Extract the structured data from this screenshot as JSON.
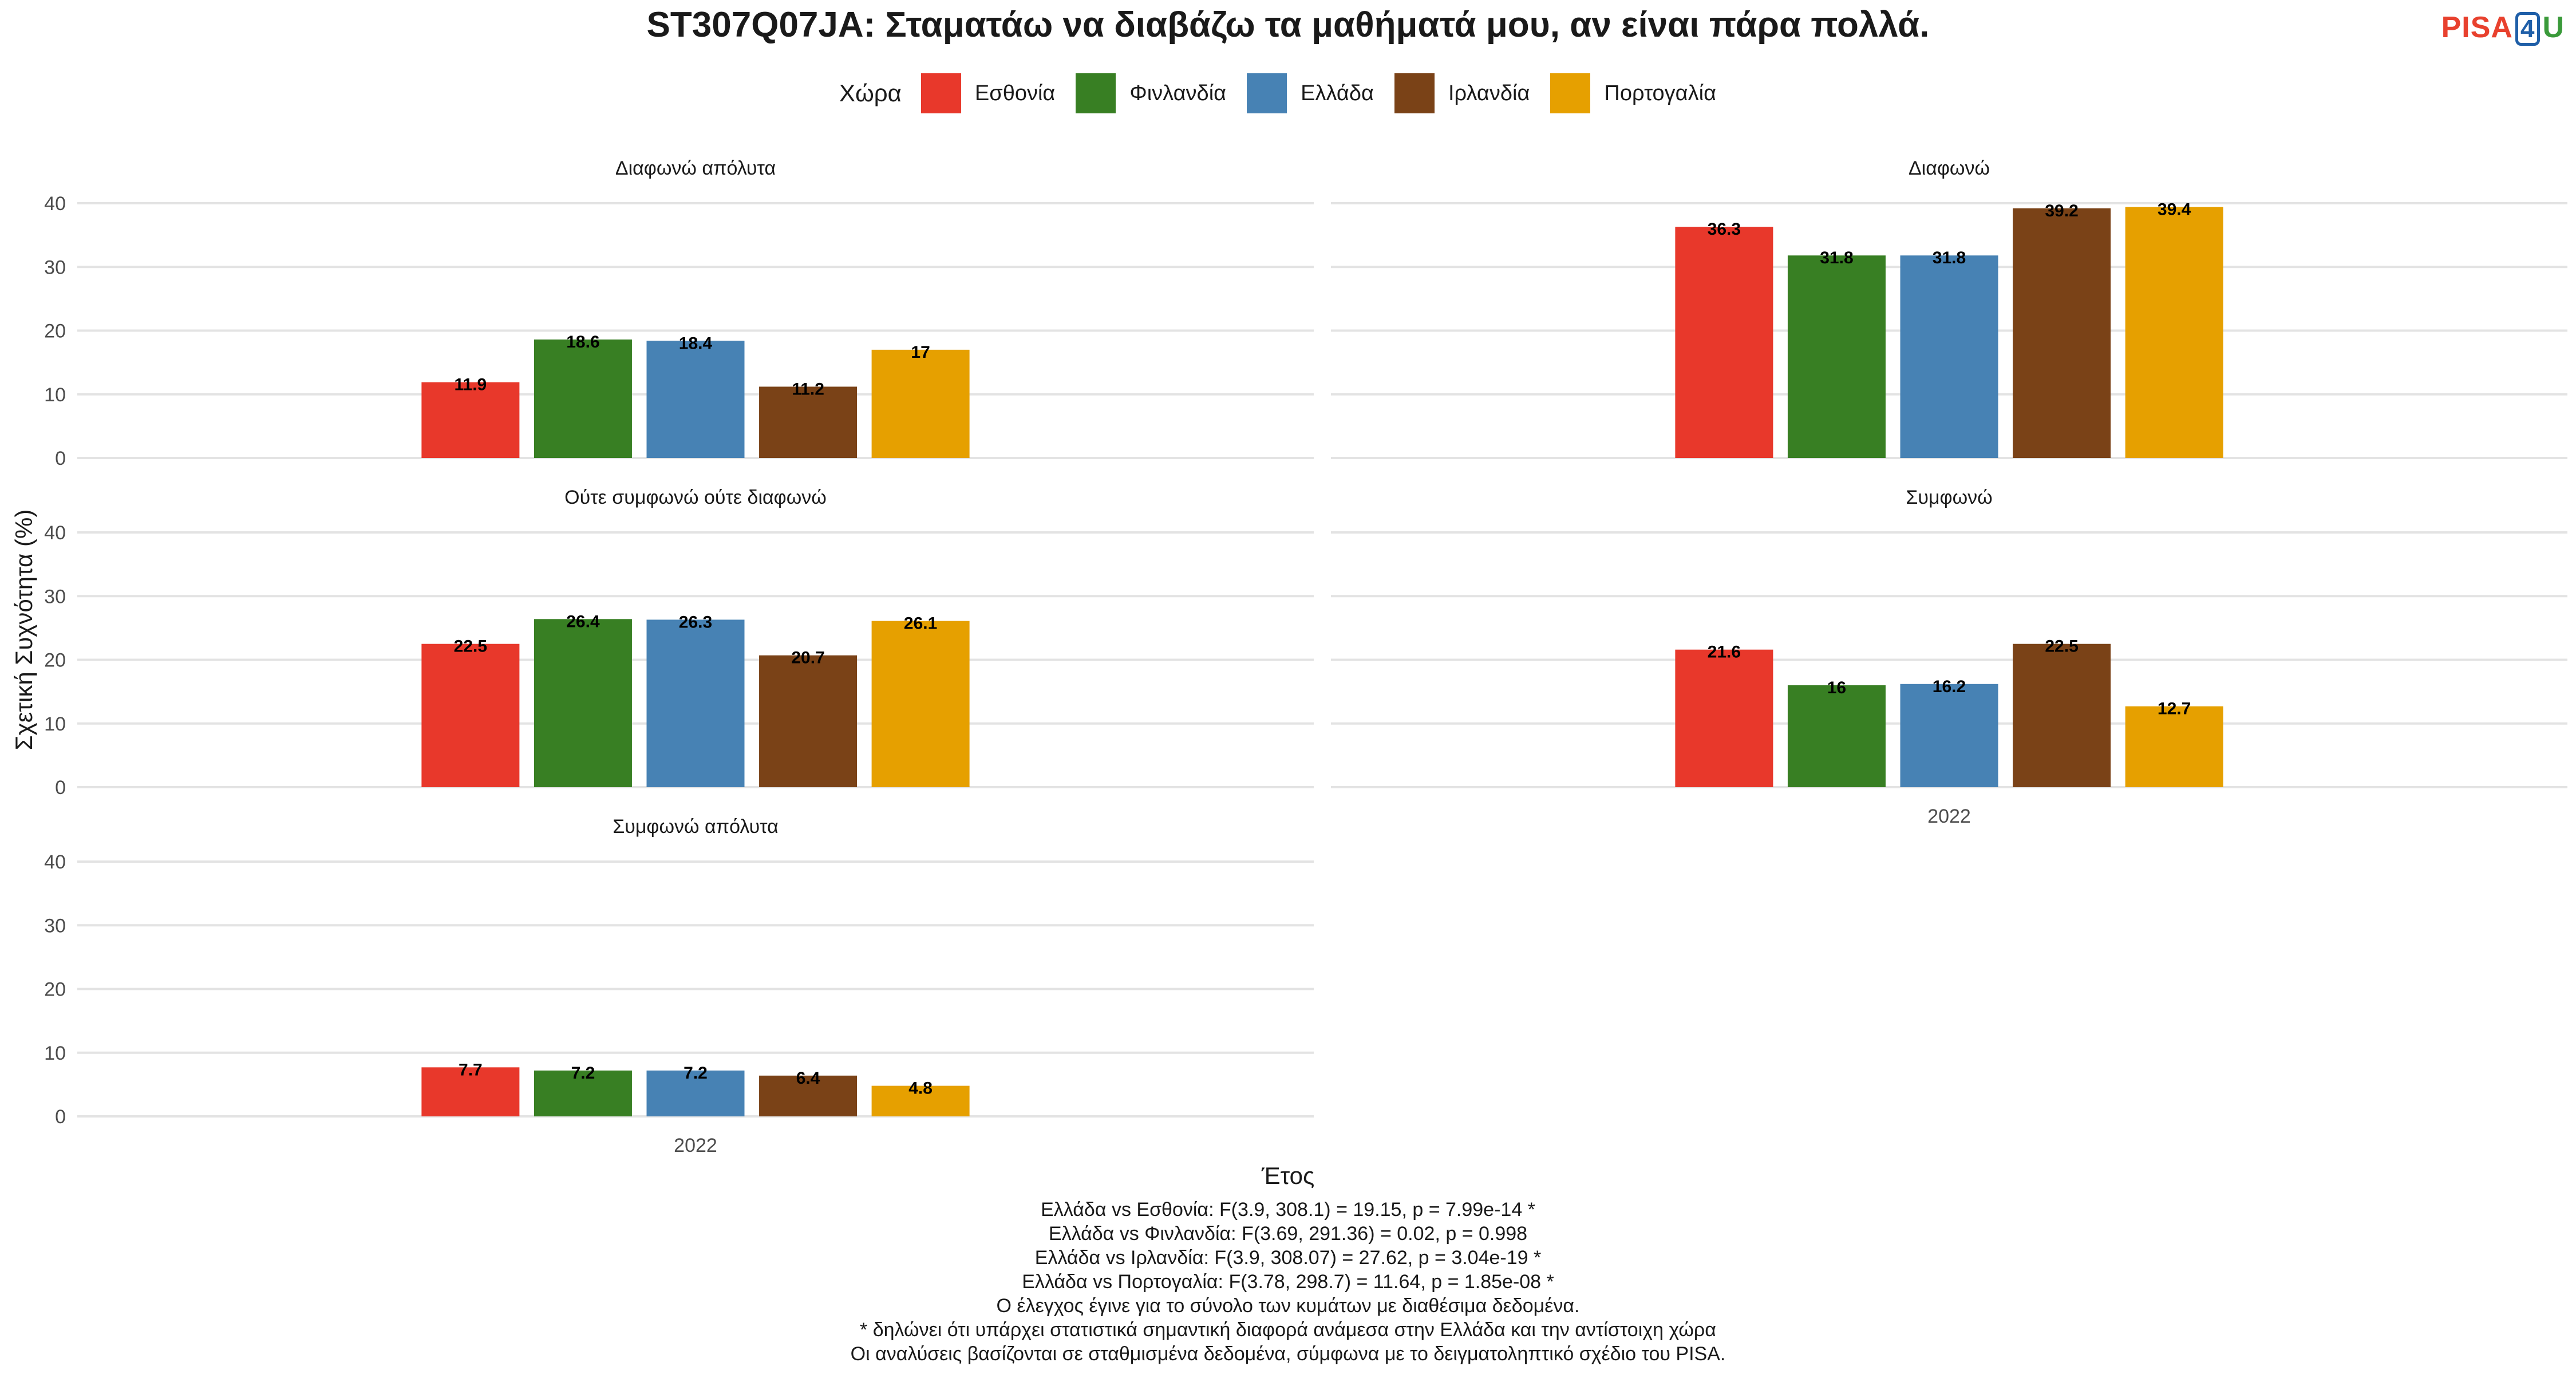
{
  "title": "ST307Q07JA: Σταματάω να διαβάζω τα μαθήματά μου, αν είναι πάρα πολλά.",
  "logo": {
    "part1": "PISA",
    "part2": "4",
    "part3": "U"
  },
  "legend": {
    "title": "Χώρα"
  },
  "chart_data": {
    "type": "bar",
    "title": "ST307Q07JA: Σταματάω να διαβάζω τα μαθήματά μου, αν είναι πάρα πολλά.",
    "xlabel": "Έτος",
    "ylabel": "Σχετική Συχνότητα (%)",
    "ylim": [
      0,
      40
    ],
    "yticks": [
      0,
      10,
      20,
      30,
      40
    ],
    "grid": true,
    "legend_position": "top",
    "x_category": "2022",
    "series": [
      {
        "name": "Εσθονία",
        "color": "#e8382b"
      },
      {
        "name": "Φινλανδία",
        "color": "#387f23"
      },
      {
        "name": "Ελλάδα",
        "color": "#4782b4"
      },
      {
        "name": "Ιρλανδία",
        "color": "#7a4217"
      },
      {
        "name": "Πορτογαλία",
        "color": "#e6a000"
      }
    ],
    "panels": [
      {
        "title": "Διαφωνώ απόλυτα",
        "values": [
          11.9,
          18.6,
          18.4,
          11.2,
          17
        ],
        "labels": [
          "11.9",
          "18.6",
          "18.4",
          "11.2",
          "17"
        ]
      },
      {
        "title": "Διαφωνώ",
        "values": [
          36.3,
          31.8,
          31.8,
          39.2,
          39.4
        ],
        "labels": [
          "36.3",
          "31.8",
          "31.8",
          "39.2",
          "39.4"
        ]
      },
      {
        "title": "Ούτε συμφωνώ ούτε διαφωνώ",
        "values": [
          22.5,
          26.4,
          26.3,
          20.7,
          26.1
        ],
        "labels": [
          "22.5",
          "26.4",
          "26.3",
          "20.7",
          "26.1"
        ]
      },
      {
        "title": "Συμφωνώ",
        "values": [
          21.6,
          16,
          16.2,
          22.5,
          12.7
        ],
        "labels": [
          "21.6",
          "16",
          "16.2",
          "22.5",
          "12.7"
        ]
      },
      {
        "title": "Συμφωνώ απόλυτα",
        "values": [
          7.7,
          7.2,
          7.2,
          6.4,
          4.8
        ],
        "labels": [
          "7.7",
          "7.2",
          "7.2",
          "6.4",
          "4.8"
        ]
      }
    ]
  },
  "notes": [
    "Ελλάδα vs Εσθονία: F(3.9, 308.1) = 19.15, p = 7.99e-14 *",
    "Ελλάδα vs Φινλανδία: F(3.69, 291.36) = 0.02, p = 0.998",
    "Ελλάδα vs Ιρλανδία: F(3.9, 308.07) = 27.62, p = 3.04e-19 *",
    "Ελλάδα vs Πορτογαλία: F(3.78, 298.7) = 11.64, p = 1.85e-08 *",
    "Ο έλεγχος έγινε για το σύνολο των κυμάτων με διαθέσιμα δεδομένα.",
    "* δηλώνει ότι υπάρχει στατιστικά σημαντική διαφορά ανάμεσα στην Ελλάδα και την αντίστοιχη χώρα",
    "Οι αναλύσεις βασίζονται σε σταθμισμένα δεδομένα, σύμφωνα με το δειγματοληπτικό σχέδιο του PISA."
  ]
}
